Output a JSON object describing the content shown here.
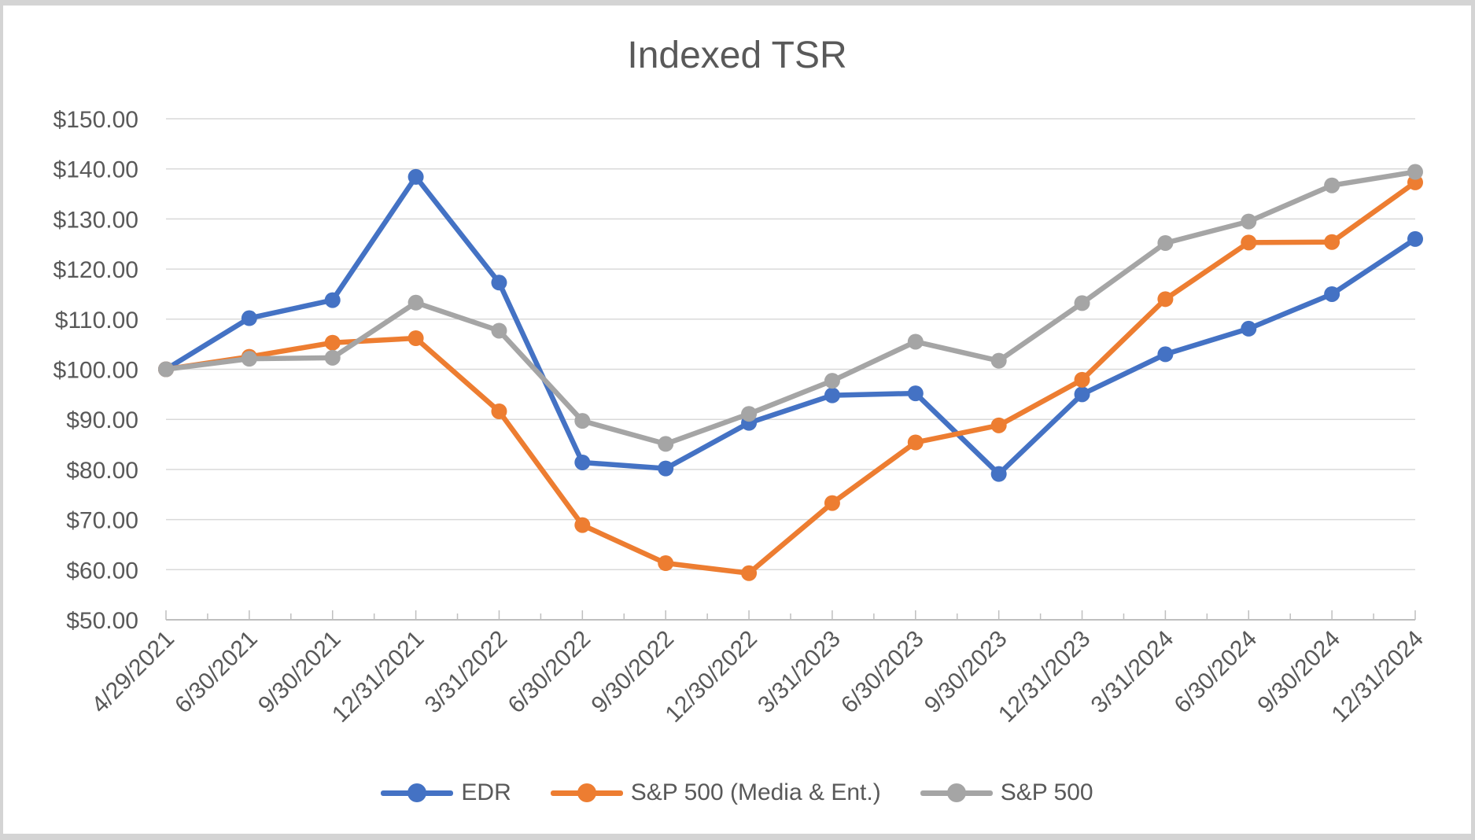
{
  "chart_data": {
    "type": "line",
    "title": "Indexed TSR",
    "categories": [
      "4/29/2021",
      "6/30/2021",
      "9/30/2021",
      "12/31/2021",
      "3/31/2022",
      "6/30/2022",
      "9/30/2022",
      "12/30/2022",
      "3/31/2023",
      "6/30/2023",
      "9/30/2023",
      "12/31/2023",
      "3/31/2024",
      "6/30/2024",
      "9/30/2024",
      "12/31/2024"
    ],
    "series": [
      {
        "name": "EDR",
        "color": "#4472C4",
        "values": [
          100.0,
          110.2,
          113.8,
          138.4,
          117.3,
          81.4,
          80.2,
          89.3,
          94.8,
          95.2,
          79.1,
          95.0,
          103.0,
          108.1,
          115.0,
          126.0
        ]
      },
      {
        "name": "S&P 500 (Media & Ent.)",
        "color": "#ED7D31",
        "values": [
          100.0,
          102.5,
          105.3,
          106.2,
          91.6,
          68.9,
          61.3,
          59.3,
          73.3,
          85.4,
          88.8,
          97.9,
          114.0,
          125.3,
          125.4,
          137.3
        ]
      },
      {
        "name": "S&P 500",
        "color": "#A5A5A5",
        "values": [
          100.0,
          102.1,
          102.3,
          113.3,
          107.7,
          89.7,
          85.1,
          91.1,
          97.7,
          105.5,
          101.7,
          113.2,
          125.2,
          129.5,
          136.7,
          139.4
        ]
      }
    ],
    "y_axis": {
      "min": 50,
      "max": 150,
      "step": 10,
      "tick_labels": [
        "$50.00",
        "$60.00",
        "$70.00",
        "$80.00",
        "$90.00",
        "$100.00",
        "$110.00",
        "$120.00",
        "$130.00",
        "$140.00",
        "$150.00"
      ]
    },
    "x_axis": {
      "label_rotation_deg": 45
    },
    "legend_position": "bottom",
    "grid": true,
    "colors": {
      "text": "#595959",
      "gridline": "#D9D9D9",
      "axis_line": "#BFBFBF"
    }
  }
}
